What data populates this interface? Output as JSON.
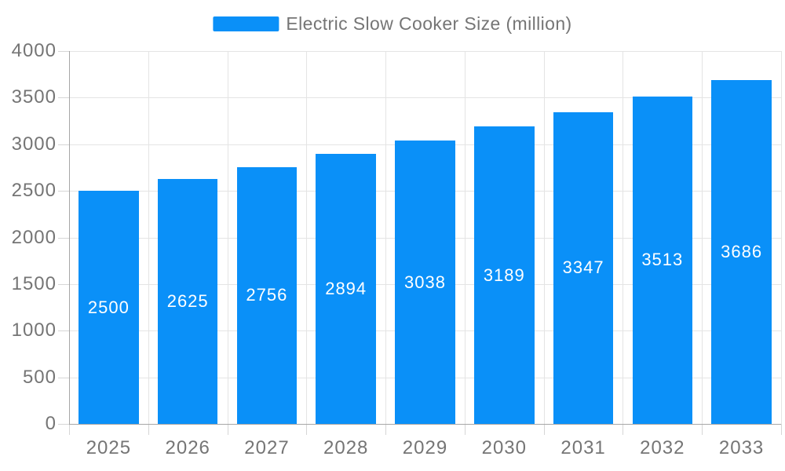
{
  "chart_data": {
    "type": "bar",
    "title": "Electric Slow Cooker Size (million)",
    "series_name": "Electric Slow Cooker Size (million)",
    "categories": [
      "2025",
      "2026",
      "2027",
      "2028",
      "2029",
      "2030",
      "2031",
      "2032",
      "2033"
    ],
    "values": [
      2500,
      2625,
      2756,
      2894,
      3038,
      3189,
      3347,
      3513,
      3686
    ],
    "xlabel": "",
    "ylabel": "",
    "ylim": [
      0,
      4000
    ],
    "yticks": [
      0,
      500,
      1000,
      1500,
      2000,
      2500,
      3000,
      3500,
      4000
    ],
    "grid": true,
    "legend_position": "top-center",
    "bar_label_position": "inside-center"
  },
  "colors": {
    "bar": "#0a90f8",
    "bar_label_text": "#ffffff",
    "axis_line": "#a6a6a6",
    "grid_line": "#e4e4e4",
    "tick_line": "#d6d6d6",
    "axis_text": "#757575",
    "background": "#ffffff"
  }
}
